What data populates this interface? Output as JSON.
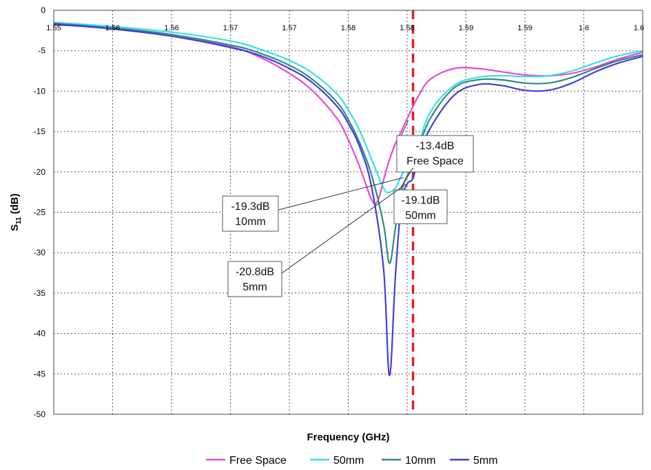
{
  "chart_data": {
    "type": "line",
    "xlabel": "Frequency (GHz)",
    "ylabel": "S",
    "ylabel_sub": "11",
    "ylabel_unit": " (dB)",
    "xlim": [
      1.55,
      1.6
    ],
    "ylim": [
      -50,
      0
    ],
    "yticks": [
      0,
      -5,
      -10,
      -15,
      -20,
      -25,
      -30,
      -35,
      -40,
      -45,
      -50
    ],
    "xtick_labels": [
      "1.55",
      "1.56",
      "1.56",
      "1.57",
      "1.57",
      "1.58",
      "1.58",
      "1.59",
      "1.59",
      "1.6",
      "1.6"
    ],
    "grid": true,
    "legend_position": "bottom",
    "marker_line": {
      "x": 1.5805,
      "color": "#e02020",
      "style": "dashed"
    },
    "series": [
      {
        "name": "Free Space",
        "color": "#e846d8",
        "x": [
          1.55,
          1.555,
          1.56,
          1.565,
          1.5675,
          1.57,
          1.572,
          1.574,
          1.575,
          1.576,
          1.577,
          1.5775,
          1.578,
          1.5785,
          1.579,
          1.5795,
          1.58,
          1.581,
          1.582,
          1.584,
          1.586,
          1.588,
          1.59,
          1.592,
          1.594,
          1.596,
          1.598,
          1.6
        ],
        "y": [
          -1.8,
          -2.2,
          -3.0,
          -4.5,
          -5.8,
          -7.8,
          -10.0,
          -13.3,
          -16.0,
          -19.5,
          -23.5,
          -23.6,
          -21.0,
          -18.5,
          -16.5,
          -15.0,
          -13.4,
          -10.5,
          -8.5,
          -7.2,
          -7.2,
          -7.6,
          -8.0,
          -8.1,
          -7.8,
          -7.0,
          -6.0,
          -5.2
        ]
      },
      {
        "name": "50mm",
        "color": "#33e0e6",
        "x": [
          1.55,
          1.555,
          1.56,
          1.565,
          1.5675,
          1.57,
          1.572,
          1.574,
          1.575,
          1.576,
          1.577,
          1.578,
          1.5785,
          1.579,
          1.5795,
          1.58,
          1.5805,
          1.581,
          1.582,
          1.584,
          1.586,
          1.588,
          1.59,
          1.592,
          1.594,
          1.596,
          1.598,
          1.6
        ],
        "y": [
          -1.5,
          -2.0,
          -2.7,
          -3.8,
          -4.8,
          -6.2,
          -7.8,
          -10.3,
          -12.3,
          -15.0,
          -18.5,
          -22.0,
          -22.5,
          -22.0,
          -20.5,
          -19.5,
          -19.1,
          -16.5,
          -12.5,
          -9.3,
          -8.3,
          -8.1,
          -8.2,
          -8.1,
          -7.5,
          -6.5,
          -5.6,
          -5.0
        ]
      },
      {
        "name": "10mm",
        "color": "#2e8a80",
        "x": [
          1.55,
          1.555,
          1.56,
          1.565,
          1.5675,
          1.57,
          1.572,
          1.574,
          1.575,
          1.576,
          1.577,
          1.578,
          1.5785,
          1.579,
          1.5795,
          1.58,
          1.5805,
          1.581,
          1.582,
          1.584,
          1.586,
          1.588,
          1.59,
          1.592,
          1.594,
          1.596,
          1.598,
          1.6
        ],
        "y": [
          -1.6,
          -2.2,
          -3.0,
          -4.3,
          -5.3,
          -6.8,
          -8.6,
          -11.3,
          -13.5,
          -16.5,
          -20.5,
          -26.5,
          -31.3,
          -27.0,
          -22.5,
          -20.5,
          -19.3,
          -17.0,
          -13.3,
          -9.6,
          -8.6,
          -8.6,
          -9.0,
          -9.0,
          -8.3,
          -7.2,
          -6.2,
          -5.5
        ]
      },
      {
        "name": "5mm",
        "color": "#3e3ed8",
        "x": [
          1.55,
          1.555,
          1.56,
          1.565,
          1.5675,
          1.57,
          1.572,
          1.574,
          1.575,
          1.576,
          1.577,
          1.578,
          1.5785,
          1.579,
          1.5795,
          1.58,
          1.5805,
          1.581,
          1.582,
          1.584,
          1.586,
          1.588,
          1.59,
          1.592,
          1.594,
          1.596,
          1.598,
          1.6
        ],
        "y": [
          -1.7,
          -2.3,
          -3.2,
          -4.6,
          -5.6,
          -7.2,
          -9.0,
          -11.8,
          -14.0,
          -17.0,
          -22.0,
          -32.0,
          -45.2,
          -33.0,
          -24.0,
          -21.5,
          -20.8,
          -18.0,
          -14.5,
          -10.5,
          -9.2,
          -9.3,
          -9.9,
          -9.9,
          -9.0,
          -7.6,
          -6.5,
          -5.7
        ]
      }
    ],
    "annotations": [
      {
        "lines": [
          "-13.4dB",
          "Free Space"
        ],
        "point": {
          "x": 1.58,
          "y": -13.4
        }
      },
      {
        "lines": [
          "-19.1dB",
          "50mm"
        ],
        "point": {
          "x": 1.5805,
          "y": -19.1
        }
      },
      {
        "lines": [
          "-19.3dB",
          "10mm"
        ],
        "point": {
          "x": 1.5805,
          "y": -19.3
        }
      },
      {
        "lines": [
          "-20.8dB",
          "5mm"
        ],
        "point": {
          "x": 1.5805,
          "y": -20.8
        }
      }
    ]
  }
}
